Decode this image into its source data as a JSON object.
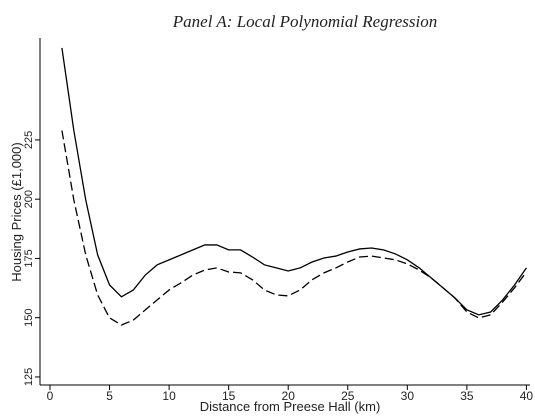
{
  "chart_data": {
    "type": "line",
    "title": "Panel A: Local Polynomial Regression",
    "x_label": "Distance from Preese Hall (km)",
    "y_label": "Housing Prices (£1,000)",
    "x": [
      1,
      2,
      3,
      4,
      5,
      6,
      7,
      8,
      9,
      10,
      11,
      12,
      13,
      14,
      15,
      16,
      17,
      18,
      19,
      20,
      21,
      22,
      23,
      24,
      25,
      26,
      27,
      28,
      29,
      30,
      31,
      32,
      33,
      34,
      35,
      36,
      37,
      38,
      39,
      40
    ],
    "series": [
      {
        "color": "#000000",
        "dash": false,
        "values": [
          263.8,
          229,
          199.7,
          176.5,
          163.8,
          158.8,
          161.7,
          168,
          172.3,
          174.4,
          176.5,
          178.6,
          180.7,
          180.7,
          178.6,
          178.6,
          175.6,
          172.3,
          171,
          169.7,
          171,
          173.5,
          175.2,
          176,
          177.7,
          179,
          179.4,
          178.6,
          176.9,
          174.4,
          171,
          166.8,
          162.6,
          158.3,
          153.3,
          151.2,
          152.4,
          157.5,
          163.8,
          171
        ]
      },
      {
        "color": "#000000",
        "dash": true,
        "values": [
          229,
          199.7,
          176.5,
          159.6,
          149.9,
          146.9,
          149,
          153.3,
          157.5,
          161.7,
          164.7,
          168,
          170.1,
          171,
          169.3,
          168.9,
          166,
          161.7,
          159.6,
          159.2,
          161.7,
          166,
          168.9,
          171,
          173.5,
          175.6,
          176,
          175.2,
          174.4,
          172.7,
          170.1,
          166.8,
          162.6,
          158.3,
          152.4,
          149.9,
          151.2,
          156.6,
          162.6,
          169.3
        ]
      }
    ],
    "xlim": [
      -0.84,
      40.3
    ],
    "xticks": [
      0,
      5,
      10,
      15,
      20,
      25,
      30,
      35,
      40
    ],
    "ylim": [
      121.6,
      268
    ],
    "yticks": [
      125,
      150,
      175,
      200,
      225
    ]
  }
}
